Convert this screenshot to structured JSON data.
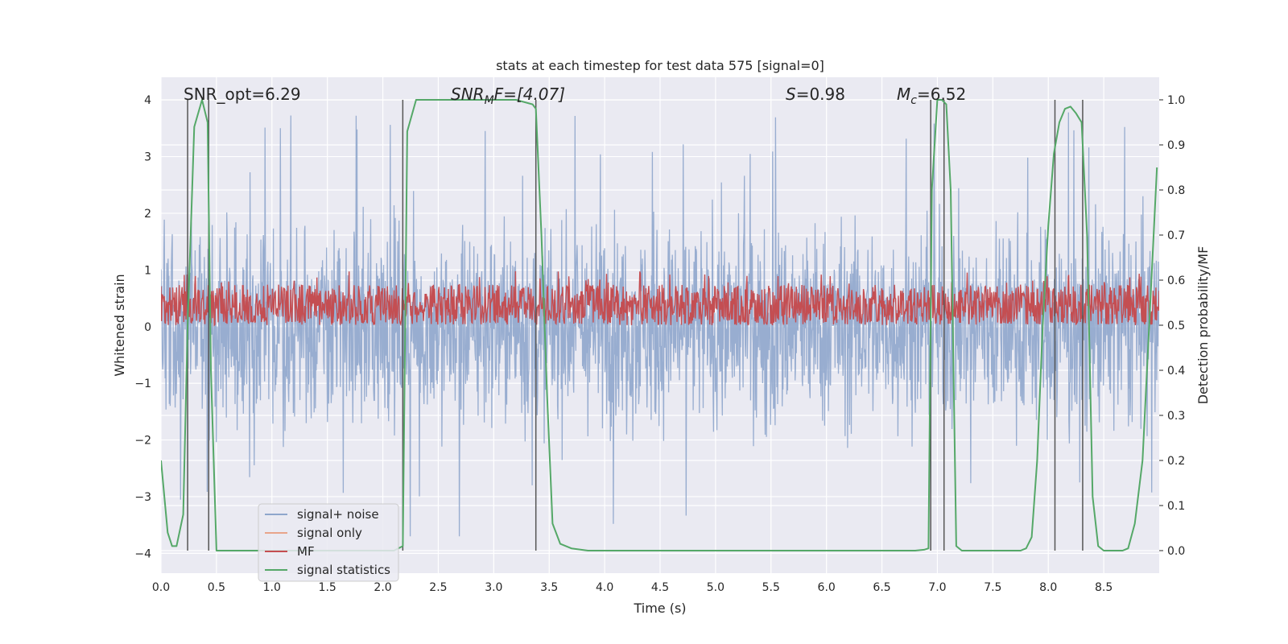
{
  "chart_data": {
    "type": "line",
    "title": "stats at each timestep for test data 575 [signal=0]",
    "xlabel": "Time (s)",
    "ylabel_left": "Whitened strain",
    "ylabel_right": "Detection probability/MF",
    "xlim": [
      0.0,
      9.0
    ],
    "ylim_left": [
      -4.35,
      4.4
    ],
    "ylim_right": [
      -0.05,
      1.05
    ],
    "xticks": [
      "0.0",
      "0.5",
      "1.0",
      "1.5",
      "2.0",
      "2.5",
      "3.0",
      "3.5",
      "4.0",
      "4.5",
      "5.0",
      "5.5",
      "6.0",
      "6.5",
      "7.0",
      "7.5",
      "8.0",
      "8.5"
    ],
    "yticks_left": [
      "4",
      "3",
      "2",
      "1",
      "0",
      "−1",
      "−2",
      "−3",
      "−4"
    ],
    "yticks_right": [
      "1.0",
      "0.9",
      "0.8",
      "0.7",
      "0.6",
      "0.5",
      "0.4",
      "0.3",
      "0.2",
      "0.1",
      "0.0"
    ],
    "annotations": {
      "snr_opt": "SNR_opt=6.29",
      "snr_mf_sym": "SNR",
      "snr_mf_sub": "M",
      "snr_mf_rest": "F=[4.07]",
      "s_sym": "S",
      "s_rest": "=0.98",
      "mc_sym": "M",
      "mc_sub": "c",
      "mc_rest": "=6.52"
    },
    "legend": {
      "placement": "lower-left",
      "entries": [
        {
          "label": "signal+ noise",
          "color": "#8fa6cc"
        },
        {
          "label": "signal only",
          "color": "#e8a58a"
        },
        {
          "label": "MF",
          "color": "#c44e52"
        },
        {
          "label": "signal statistics",
          "color": "#55a868"
        }
      ]
    },
    "series": [
      {
        "name": "signal statistics",
        "axis": "right",
        "color": "#55a868",
        "x": [
          0.0,
          0.06,
          0.1,
          0.14,
          0.2,
          0.24,
          0.3,
          0.37,
          0.42,
          0.45,
          0.5,
          0.55,
          2.1,
          2.18,
          2.22,
          2.3,
          2.5,
          3.2,
          3.35,
          3.38,
          3.43,
          3.48,
          3.53,
          3.6,
          3.7,
          3.85,
          6.8,
          6.88,
          6.92,
          6.95,
          7.0,
          7.04,
          7.08,
          7.12,
          7.17,
          7.22,
          7.3,
          7.75,
          7.8,
          7.85,
          7.9,
          7.95,
          8.0,
          8.05,
          8.1,
          8.15,
          8.2,
          8.25,
          8.3,
          8.35,
          8.4,
          8.45,
          8.5,
          8.6,
          8.67,
          8.72,
          8.78,
          8.85,
          8.9,
          8.98
        ],
        "y": [
          0.2,
          0.04,
          0.01,
          0.01,
          0.08,
          0.5,
          0.94,
          1.0,
          0.95,
          0.4,
          0.0,
          0.0,
          0.0,
          0.01,
          0.93,
          1.0,
          1.0,
          1.0,
          0.99,
          0.98,
          0.7,
          0.35,
          0.06,
          0.015,
          0.005,
          0.0,
          0.0,
          0.002,
          0.005,
          0.8,
          1.0,
          1.0,
          0.99,
          0.8,
          0.01,
          0.0,
          0.0,
          0.0,
          0.005,
          0.03,
          0.2,
          0.5,
          0.72,
          0.88,
          0.95,
          0.98,
          0.985,
          0.97,
          0.95,
          0.7,
          0.12,
          0.01,
          0.0,
          0.0,
          0.0,
          0.005,
          0.06,
          0.2,
          0.45,
          0.85
        ]
      }
    ],
    "noise_series": {
      "name": "signal+ noise",
      "axis": "left",
      "typical_range": [
        -2.2,
        2.3
      ],
      "extremes_range": [
        -3.7,
        4.0
      ]
    },
    "mf_series": {
      "name": "MF",
      "axis": "right",
      "typical_range": [
        0.505,
        0.59
      ],
      "extremes_range": [
        0.5,
        0.62
      ]
    },
    "vertical_markers_x": [
      0.24,
      0.43,
      2.18,
      3.38,
      6.94,
      7.06,
      8.06,
      8.31
    ]
  }
}
